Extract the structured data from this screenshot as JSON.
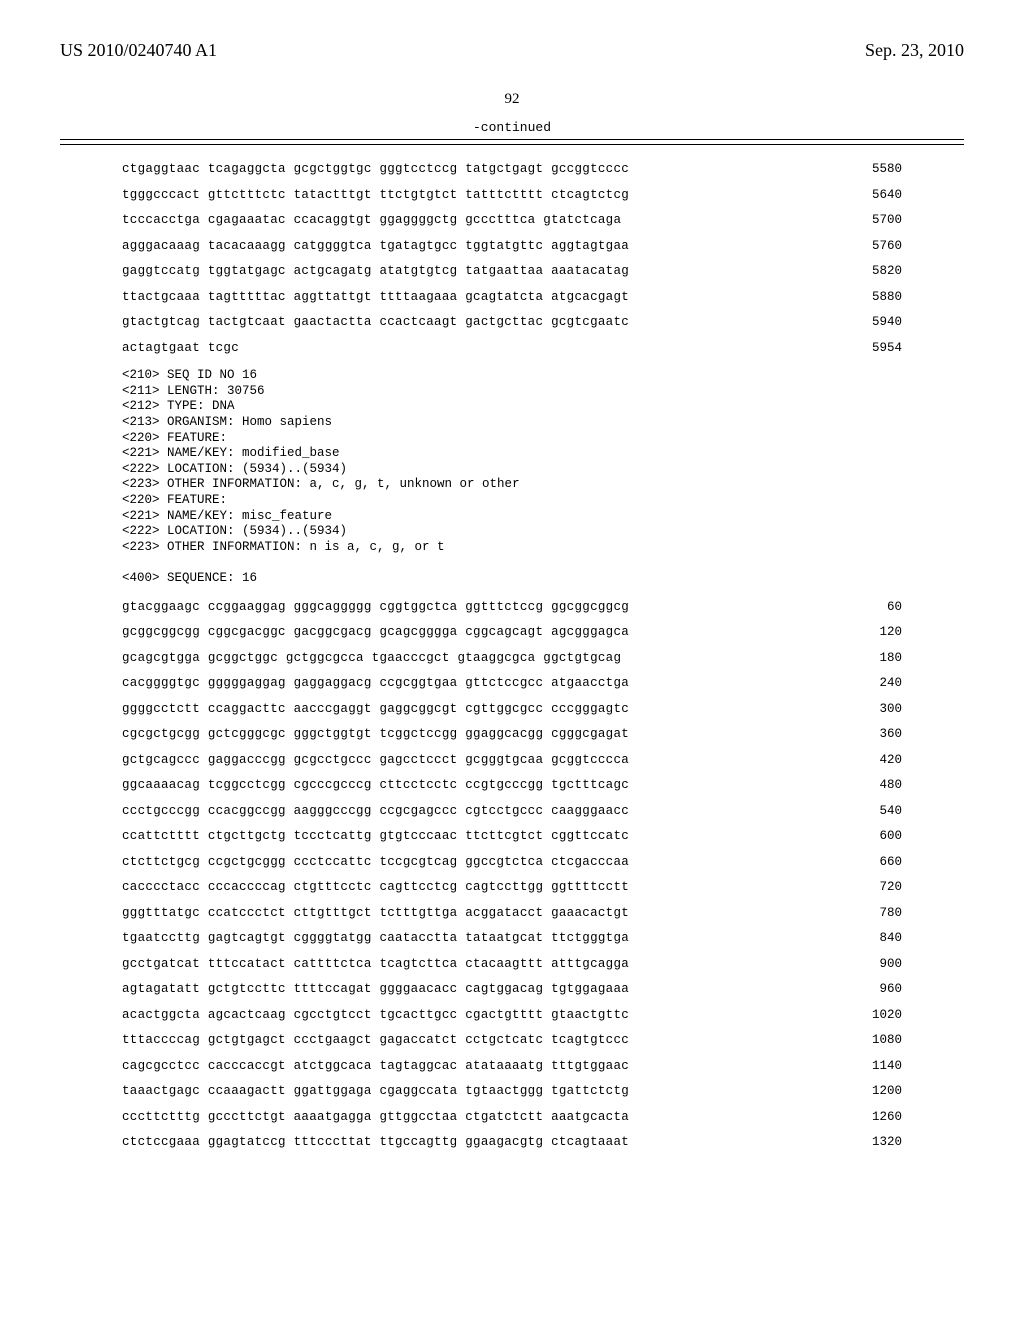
{
  "header": {
    "pub_number": "US 2010/0240740 A1",
    "date": "Sep. 23, 2010"
  },
  "page_number": "92",
  "continued_label": "-continued",
  "seq_upper": [
    {
      "t": "ctgaggtaac tcagaggcta gcgctggtgc gggtcctccg tatgctgagt gccggtcccc",
      "n": "5580"
    },
    {
      "t": "tgggcccact gttctttctc tatactttgt ttctgtgtct tatttctttt ctcagtctcg",
      "n": "5640"
    },
    {
      "t": "tcccacctga cgagaaatac ccacaggtgt ggaggggctg gccctttca gtatctcaga",
      "n": "5700"
    },
    {
      "t": "agggacaaag tacacaaagg catggggtca tgatagtgcc tggtatgttc aggtagtgaa",
      "n": "5760"
    },
    {
      "t": "gaggtccatg tggtatgagc actgcagatg atatgtgtcg tatgaattaa aaatacatag",
      "n": "5820"
    },
    {
      "t": "ttactgcaaa tagtttttac aggttattgt ttttaagaaa gcagtatcta atgcacgagt",
      "n": "5880"
    },
    {
      "t": "gtactgtcag tactgtcaat gaactactta ccactcaagt gactgcttac gcgtcgaatc",
      "n": "5940"
    },
    {
      "t": "actagtgaat tcgc",
      "n": "5954"
    }
  ],
  "metadata": [
    "<210> SEQ ID NO 16",
    "<211> LENGTH: 30756",
    "<212> TYPE: DNA",
    "<213> ORGANISM: Homo sapiens",
    "<220> FEATURE:",
    "<221> NAME/KEY: modified_base",
    "<222> LOCATION: (5934)..(5934)",
    "<223> OTHER INFORMATION: a, c, g, t, unknown or other",
    "<220> FEATURE:",
    "<221> NAME/KEY: misc_feature",
    "<222> LOCATION: (5934)..(5934)",
    "<223> OTHER INFORMATION: n is a, c, g, or t",
    "",
    "<400> SEQUENCE: 16"
  ],
  "seq_lower": [
    {
      "t": "gtacggaagc ccggaaggag gggcaggggg cggtggctca ggtttctccg ggcggcggcg",
      "n": "60"
    },
    {
      "t": "gcggcggcgg cggcgacggc gacggcgacg gcagcgggga cggcagcagt agcgggagca",
      "n": "120"
    },
    {
      "t": "gcagcgtgga gcggctggc gctggcgcca tgaacccgct gtaaggcgca ggctgtgcag",
      "n": "180"
    },
    {
      "t": "cacggggtgc gggggaggag gaggaggacg ccgcggtgaa gttctccgcc atgaacctga",
      "n": "240"
    },
    {
      "t": "ggggcctctt ccaggacttc aacccgaggt gaggcggcgt cgttggcgcc cccgggagtc",
      "n": "300"
    },
    {
      "t": "cgcgctgcgg gctcgggcgc gggctggtgt tcggctccgg ggaggcacgg cgggcgagat",
      "n": "360"
    },
    {
      "t": "gctgcagccc gaggacccgg gcgcctgccc gagcctccct gcgggtgcaa gcggtcccca",
      "n": "420"
    },
    {
      "t": "ggcaaaacag tcggcctcgg cgcccgcccg cttcctcctc ccgtgcccgg tgctttcagc",
      "n": "480"
    },
    {
      "t": "ccctgcccgg ccacggccgg aagggcccgg ccgcgagccc cgtcctgccc caagggaacc",
      "n": "540"
    },
    {
      "t": "ccattctttt ctgcttgctg tccctcattg gtgtcccaac ttcttcgtct cggttccatc",
      "n": "600"
    },
    {
      "t": "ctcttctgcg ccgctgcggg ccctccattc tccgcgtcag ggccgtctca ctcgacccaa",
      "n": "660"
    },
    {
      "t": "cacccctacc cccaccccag ctgtttcctc cagttcctcg cagtccttgg ggttttcctt",
      "n": "720"
    },
    {
      "t": "gggtttatgc ccatccctct cttgtttgct tctttgttga acggatacct gaaacactgt",
      "n": "780"
    },
    {
      "t": "tgaatccttg gagtcagtgt cggggtatgg caatacctta tataatgcat ttctgggtga",
      "n": "840"
    },
    {
      "t": "gcctgatcat tttccatact cattttctca tcagtcttca ctacaagttt atttgcagga",
      "n": "900"
    },
    {
      "t": "agtagatatt gctgtccttc ttttccagat ggggaacacc cagtggacag tgtggagaaa",
      "n": "960"
    },
    {
      "t": "acactggcta agcactcaag cgcctgtcct tgcacttgcc cgactgtttt gtaactgttc",
      "n": "1020"
    },
    {
      "t": "tttaccccag gctgtgagct ccctgaagct gagaccatct cctgctcatc tcagtgtccc",
      "n": "1080"
    },
    {
      "t": "cagcgcctcc cacccaccgt atctggcaca tagtaggcac atataaaatg tttgtggaac",
      "n": "1140"
    },
    {
      "t": "taaactgagc ccaaagactt ggattggaga cgaggccata tgtaactggg tgattctctg",
      "n": "1200"
    },
    {
      "t": "cccttctttg gcccttctgt aaaatgagga gttggcctaa ctgatctctt aaatgcacta",
      "n": "1260"
    },
    {
      "t": "ctctccgaaa ggagtatccg tttcccttat ttgccagttg ggaagacgtg ctcagtaaat",
      "n": "1320"
    }
  ]
}
